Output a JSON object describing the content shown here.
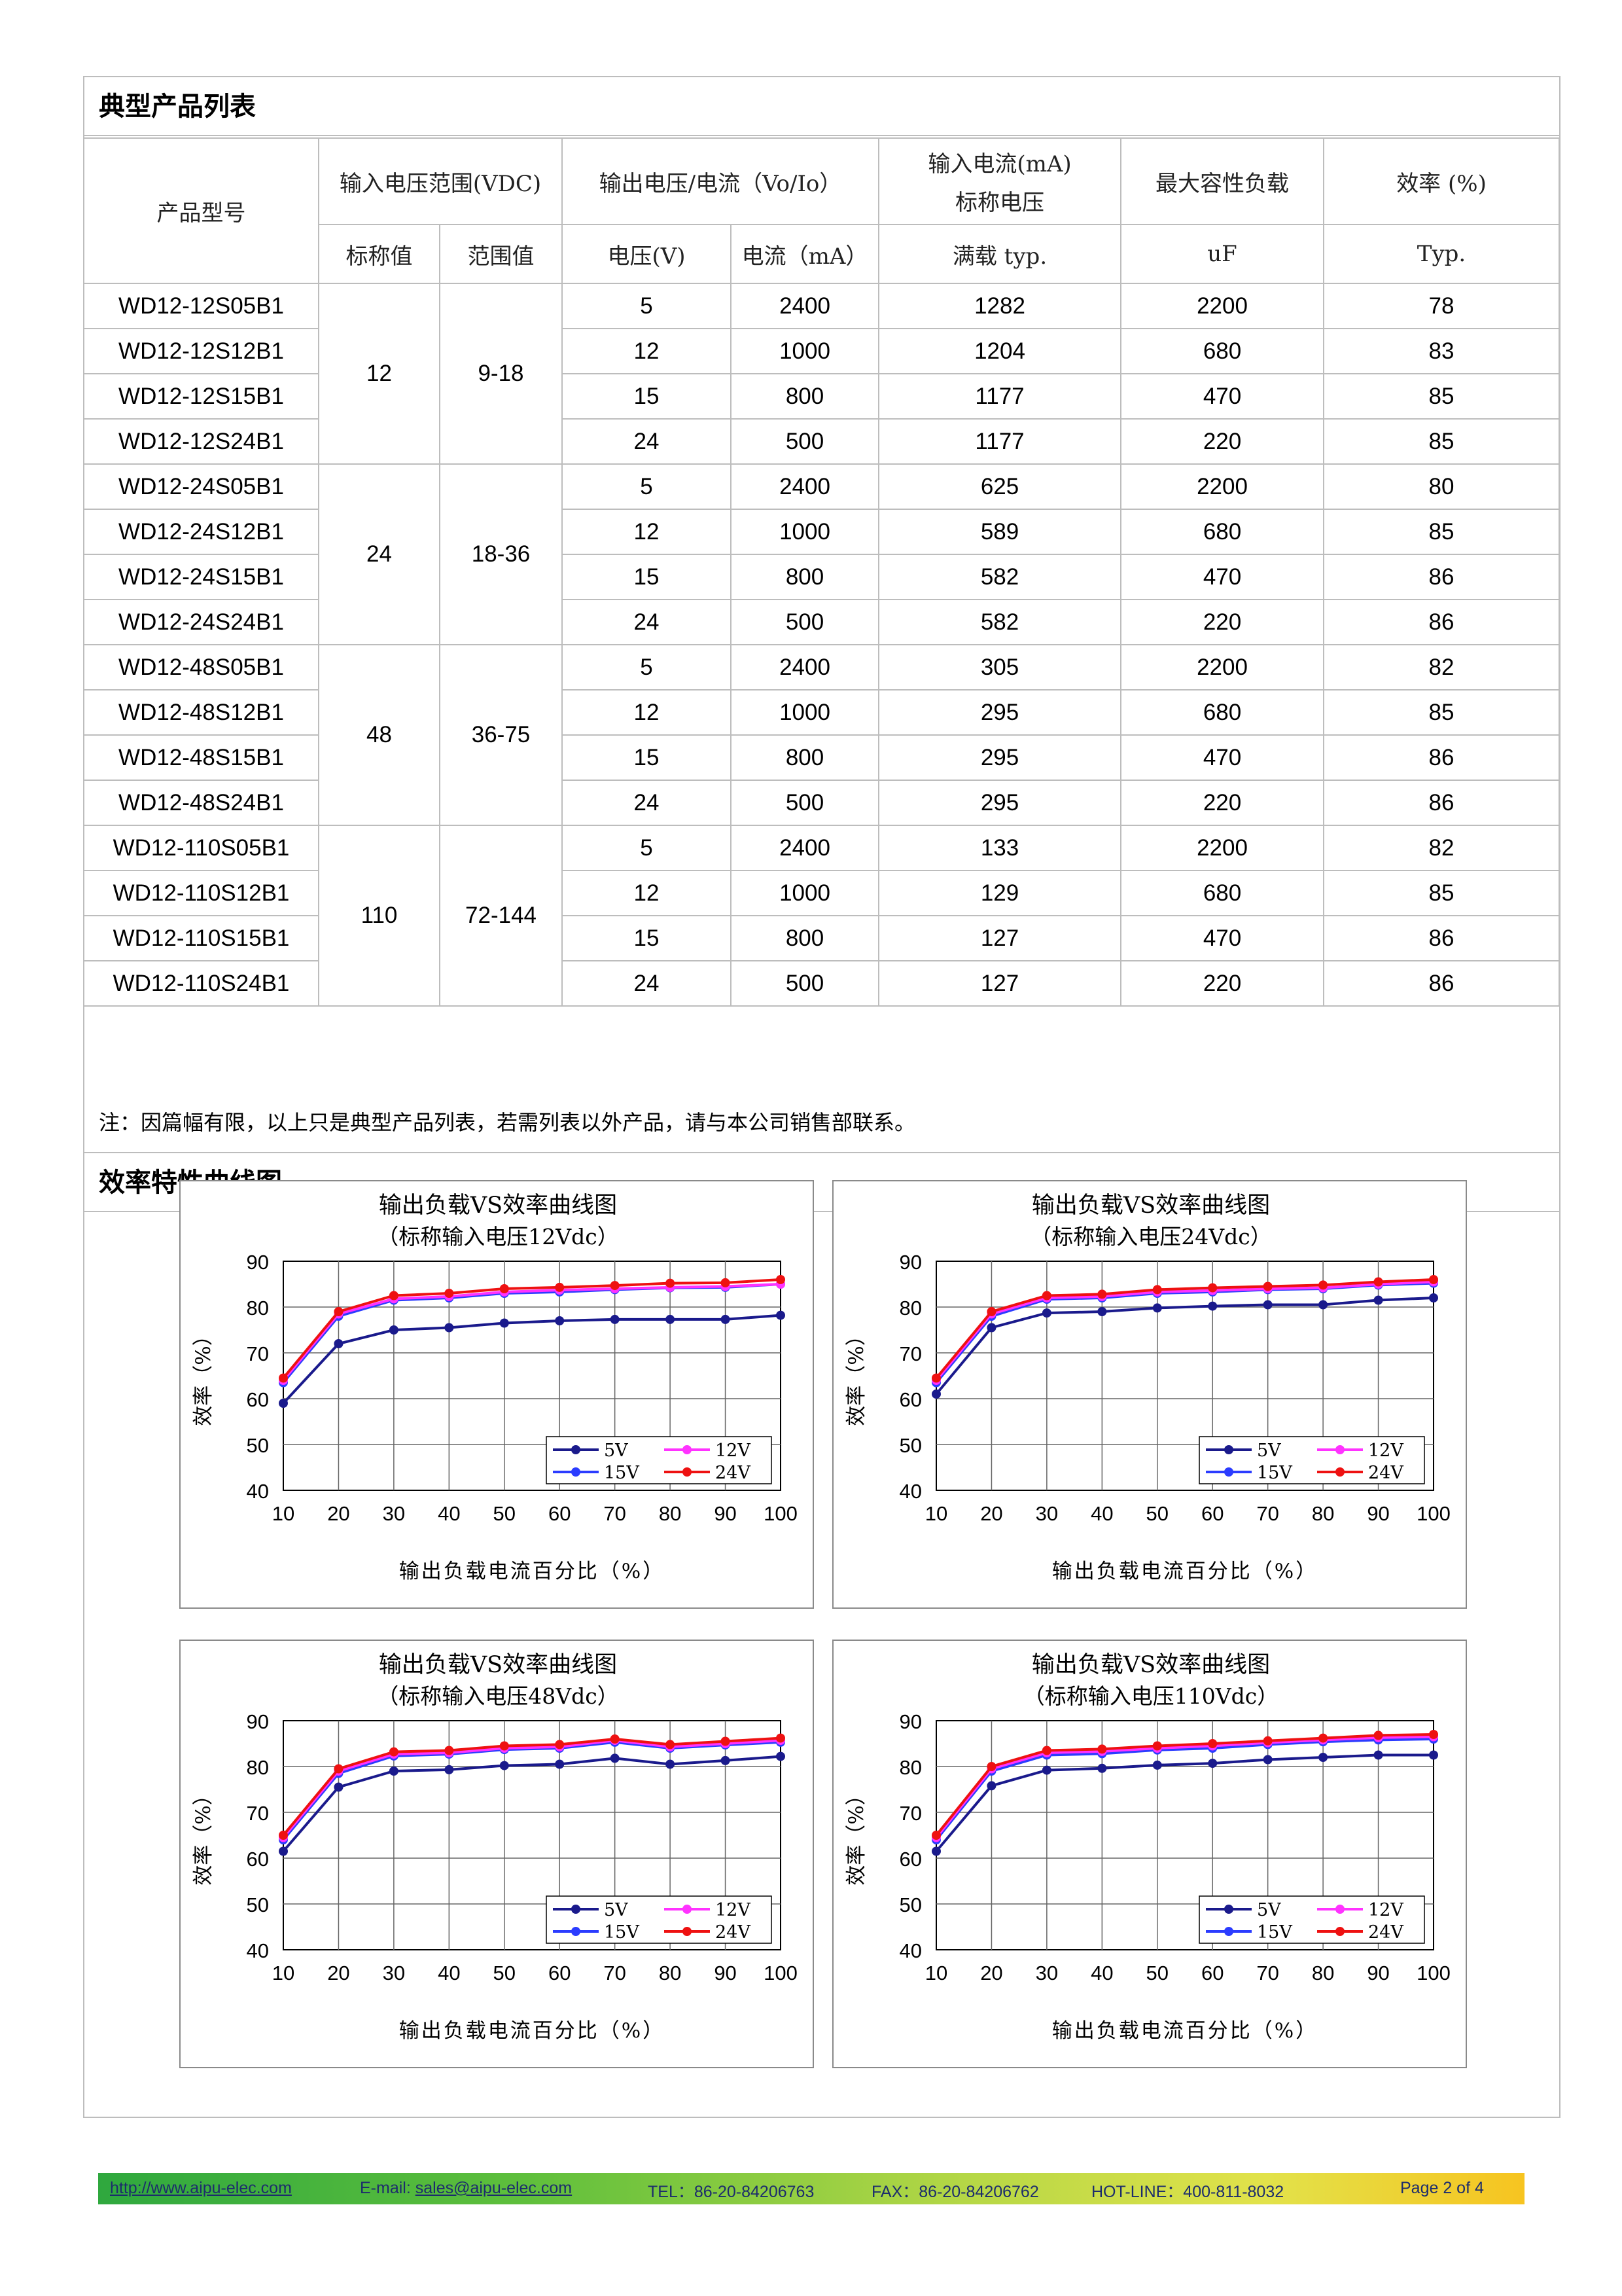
{
  "sections": {
    "products_title": "典型产品列表",
    "curves_title": "效率特性曲线图"
  },
  "table": {
    "header": {
      "model": "产品型号",
      "input_range": "输入电压范围(VDC)",
      "output": "输出电压/电流（Vo/Io）",
      "input_current_l1": "输入电流(mA)",
      "input_current_l2": "标称电压",
      "max_cap": "最大容性负载",
      "efficiency": "效率 (%)",
      "nominal": "标称值",
      "range": "范围值",
      "voltage": "电压(V)",
      "current": "电流（mA）",
      "full_load": "满载 typ.",
      "uf": "uF",
      "typ": "Typ."
    },
    "groups": [
      {
        "nominal": "12",
        "range": "9-18",
        "rows": [
          {
            "model": "WD12-12S05B1",
            "vo": "5",
            "io": "2400",
            "iin": "1282",
            "cap": "2200",
            "eff": "78"
          },
          {
            "model": "WD12-12S12B1",
            "vo": "12",
            "io": "1000",
            "iin": "1204",
            "cap": "680",
            "eff": "83"
          },
          {
            "model": "WD12-12S15B1",
            "vo": "15",
            "io": "800",
            "iin": "1177",
            "cap": "470",
            "eff": "85"
          },
          {
            "model": "WD12-12S24B1",
            "vo": "24",
            "io": "500",
            "iin": "1177",
            "cap": "220",
            "eff": "85"
          }
        ]
      },
      {
        "nominal": "24",
        "range": "18-36",
        "rows": [
          {
            "model": "WD12-24S05B1",
            "vo": "5",
            "io": "2400",
            "iin": "625",
            "cap": "2200",
            "eff": "80"
          },
          {
            "model": "WD12-24S12B1",
            "vo": "12",
            "io": "1000",
            "iin": "589",
            "cap": "680",
            "eff": "85"
          },
          {
            "model": "WD12-24S15B1",
            "vo": "15",
            "io": "800",
            "iin": "582",
            "cap": "470",
            "eff": "86"
          },
          {
            "model": "WD12-24S24B1",
            "vo": "24",
            "io": "500",
            "iin": "582",
            "cap": "220",
            "eff": "86"
          }
        ]
      },
      {
        "nominal": "48",
        "range": "36-75",
        "rows": [
          {
            "model": "WD12-48S05B1",
            "vo": "5",
            "io": "2400",
            "iin": "305",
            "cap": "2200",
            "eff": "82"
          },
          {
            "model": "WD12-48S12B1",
            "vo": "12",
            "io": "1000",
            "iin": "295",
            "cap": "680",
            "eff": "85"
          },
          {
            "model": "WD12-48S15B1",
            "vo": "15",
            "io": "800",
            "iin": "295",
            "cap": "470",
            "eff": "86"
          },
          {
            "model": "WD12-48S24B1",
            "vo": "24",
            "io": "500",
            "iin": "295",
            "cap": "220",
            "eff": "86"
          }
        ]
      },
      {
        "nominal": "110",
        "range": "72-144",
        "rows": [
          {
            "model": "WD12-110S05B1",
            "vo": "5",
            "io": "2400",
            "iin": "133",
            "cap": "2200",
            "eff": "82"
          },
          {
            "model": "WD12-110S12B1",
            "vo": "12",
            "io": "1000",
            "iin": "129",
            "cap": "680",
            "eff": "85"
          },
          {
            "model": "WD12-110S15B1",
            "vo": "15",
            "io": "800",
            "iin": "127",
            "cap": "470",
            "eff": "86"
          },
          {
            "model": "WD12-110S24B1",
            "vo": "24",
            "io": "500",
            "iin": "127",
            "cap": "220",
            "eff": "86"
          }
        ]
      }
    ],
    "note": "注：因篇幅有限，以上只是典型产品列表，若需列表以外产品，请与本公司销售部联系。"
  },
  "chart_colors": {
    "5V": "#1a1a8c",
    "12V": "#ff33ff",
    "15V": "#2b3cff",
    "24V": "#ee1111"
  },
  "chart_data": [
    {
      "type": "line",
      "title": "输出负载VS效率曲线图",
      "subtitle": "（标称输入电压12Vdc）",
      "xlabel": "输出负载电流百分比（%）",
      "ylabel": "效率（%）",
      "ylim": [
        40,
        90
      ],
      "x": [
        10,
        20,
        30,
        40,
        50,
        60,
        70,
        80,
        90,
        100
      ],
      "legend": "bottom-right",
      "series": [
        {
          "name": "5V",
          "values": [
            59,
            72,
            75,
            75.5,
            76.5,
            77,
            77.3,
            77.3,
            77.3,
            78.2
          ]
        },
        {
          "name": "12V",
          "values": [
            64,
            78.5,
            81.8,
            82.3,
            83.3,
            83.7,
            84,
            84.3,
            84.5,
            85
          ]
        },
        {
          "name": "15V",
          "values": [
            63.5,
            78,
            81.5,
            82,
            83,
            83.3,
            83.8,
            84.2,
            84.3,
            85
          ]
        },
        {
          "name": "24V",
          "values": [
            64.5,
            79,
            82.5,
            83,
            84,
            84.3,
            84.7,
            85.2,
            85.3,
            86
          ]
        }
      ]
    },
    {
      "type": "line",
      "title": "输出负载VS效率曲线图",
      "subtitle": "（标称输入电压24Vdc）",
      "xlabel": "输出负载电流百分比（%）",
      "ylabel": "效率（%）",
      "ylim": [
        40,
        90
      ],
      "x": [
        10,
        20,
        30,
        40,
        50,
        60,
        70,
        80,
        90,
        100
      ],
      "legend": "bottom-right",
      "series": [
        {
          "name": "5V",
          "values": [
            61,
            75.5,
            78.7,
            79,
            79.8,
            80.2,
            80.5,
            80.5,
            81.5,
            82
          ]
        },
        {
          "name": "12V",
          "values": [
            64,
            78.5,
            82,
            82.3,
            83.3,
            83.6,
            84,
            84.2,
            85,
            85.5
          ]
        },
        {
          "name": "15V",
          "values": [
            63.5,
            78,
            81.7,
            82,
            83,
            83.3,
            83.8,
            84,
            84.8,
            85.2
          ]
        },
        {
          "name": "24V",
          "values": [
            64.5,
            79,
            82.5,
            82.8,
            83.8,
            84.2,
            84.5,
            84.8,
            85.5,
            86
          ]
        }
      ]
    },
    {
      "type": "line",
      "title": "输出负载VS效率曲线图",
      "subtitle": "（标称输入电压48Vdc）",
      "xlabel": "输出负载电流百分比（%）",
      "ylabel": "效率（%）",
      "ylim": [
        40,
        90
      ],
      "x": [
        10,
        20,
        30,
        40,
        50,
        60,
        70,
        80,
        90,
        100
      ],
      "legend": "bottom-right",
      "series": [
        {
          "name": "5V",
          "values": [
            61.5,
            75.5,
            79,
            79.3,
            80.2,
            80.5,
            81.8,
            80.5,
            81.3,
            82.2
          ]
        },
        {
          "name": "12V",
          "values": [
            64.5,
            79,
            82.7,
            83,
            84,
            84.3,
            85.7,
            84.3,
            85,
            85.7
          ]
        },
        {
          "name": "15V",
          "values": [
            64,
            78.5,
            82.3,
            82.7,
            83.7,
            84,
            85.3,
            84,
            84.7,
            85.3
          ]
        },
        {
          "name": "24V",
          "values": [
            65,
            79.5,
            83.2,
            83.5,
            84.5,
            84.8,
            86,
            84.8,
            85.5,
            86.2
          ]
        }
      ]
    },
    {
      "type": "line",
      "title": "输出负载VS效率曲线图",
      "subtitle": "（标称输入电压110Vdc）",
      "xlabel": "输出负载电流百分比（%）",
      "ylabel": "效率（%）",
      "ylim": [
        40,
        90
      ],
      "x": [
        10,
        20,
        30,
        40,
        50,
        60,
        70,
        80,
        90,
        100
      ],
      "legend": "bottom-right",
      "series": [
        {
          "name": "5V",
          "values": [
            61.5,
            75.8,
            79.2,
            79.6,
            80.3,
            80.7,
            81.5,
            82,
            82.5,
            82.5
          ]
        },
        {
          "name": "12V",
          "values": [
            64.5,
            79.5,
            83,
            83.3,
            84,
            84.5,
            85.2,
            85.8,
            86.3,
            86.5
          ]
        },
        {
          "name": "15V",
          "values": [
            64,
            79,
            82.5,
            82.8,
            83.6,
            84,
            84.8,
            85.4,
            85.8,
            86
          ]
        },
        {
          "name": "24V",
          "values": [
            65,
            80,
            83.5,
            83.8,
            84.5,
            85,
            85.6,
            86.2,
            86.8,
            87
          ]
        }
      ]
    }
  ],
  "footer": {
    "url": "http://www.aipu-elec.com",
    "email_label": "E-mail: ",
    "email": "sales@aipu-elec.com",
    "tel": "TEL：86-20-84206763",
    "fax": "FAX：86-20-84206762",
    "hotline": "HOT-LINE：400-811-8032",
    "page": "Page 2 of 4"
  }
}
